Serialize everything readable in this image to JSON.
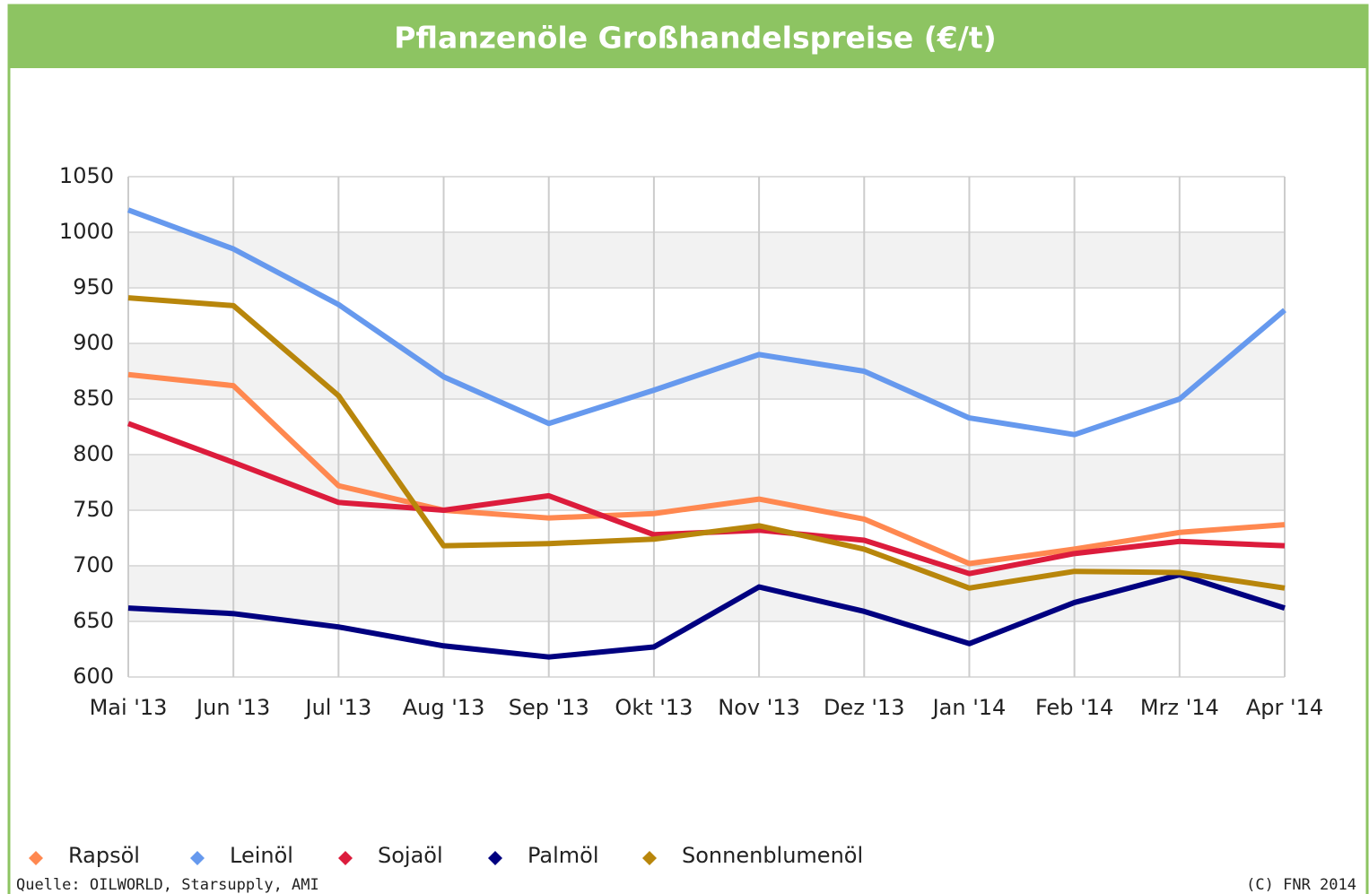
{
  "chart_data": {
    "type": "line",
    "title": "Pflanzenöle Großhandelspreise (€/t)",
    "categories": [
      "Mai '13",
      "Jun '13",
      "Jul '13",
      "Aug '13",
      "Sep '13",
      "Okt '13",
      "Nov '13",
      "Dez '13",
      "Jan '14",
      "Feb '14",
      "Mrz '14",
      "Apr '14"
    ],
    "series": [
      {
        "name": "Rapsöl",
        "color": "#ff8850",
        "values": [
          872,
          862,
          772,
          750,
          743,
          747,
          760,
          742,
          702,
          715,
          730,
          737
        ]
      },
      {
        "name": "Leinöl",
        "color": "#6699ee",
        "values": [
          1020,
          985,
          935,
          870,
          828,
          858,
          890,
          875,
          833,
          818,
          850,
          930
        ]
      },
      {
        "name": "Sojaöl",
        "color": "#dc1c3c",
        "values": [
          828,
          793,
          757,
          750,
          763,
          728,
          732,
          723,
          693,
          711,
          722,
          718
        ]
      },
      {
        "name": "Palmöl",
        "color": "#000080",
        "values": [
          662,
          657,
          645,
          628,
          618,
          627,
          681,
          659,
          630,
          667,
          692,
          662
        ]
      },
      {
        "name": "Sonnenblumenöl",
        "color": "#b8860b",
        "values": [
          941,
          934,
          853,
          718,
          720,
          724,
          736,
          715,
          680,
          695,
          694,
          680
        ]
      }
    ],
    "ylim": [
      600,
      1050
    ],
    "yticks": [
      600,
      650,
      700,
      750,
      800,
      850,
      900,
      950,
      1000,
      1050
    ],
    "grid": true,
    "legend": "bottom",
    "source": "Quelle: OILWORLD, Starsupply, AMI",
    "copyright": "(C) FNR 2014"
  }
}
